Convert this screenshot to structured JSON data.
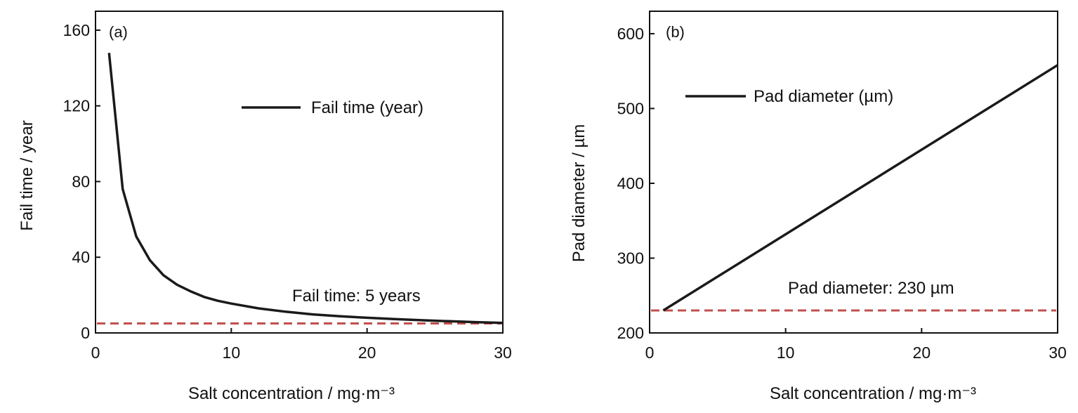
{
  "chart_data": [
    {
      "type": "line",
      "panel_label": "(a)",
      "xlabel": "Salt concentration / mg·m⁻³",
      "ylabel": "Fail time / year",
      "xlim": [
        0,
        30
      ],
      "ylim": [
        0,
        170
      ],
      "xticks": [
        0,
        10,
        20,
        30
      ],
      "yticks": [
        0,
        40,
        80,
        120,
        160
      ],
      "legend": {
        "label": "Fail time (year)",
        "position": "upper-right"
      },
      "series": [
        {
          "name": "Fail time (year)",
          "color": "#1a1a1a",
          "x": [
            1,
            2,
            3,
            4,
            5,
            6,
            7,
            8,
            9,
            10,
            12,
            14,
            16,
            18,
            20,
            22,
            24,
            26,
            28,
            30
          ],
          "y": [
            148,
            76,
            51,
            38.5,
            30.5,
            25.5,
            22,
            19,
            17,
            15.5,
            13,
            11.2,
            9.8,
            8.8,
            8,
            7.3,
            6.7,
            6.2,
            5.7,
            5.3
          ]
        }
      ],
      "reference_line": {
        "y": 5,
        "color": "#c0504d",
        "style": "dashed",
        "label": "Fail time: 5 years"
      }
    },
    {
      "type": "line",
      "panel_label": "(b)",
      "xlabel": "Salt concentration / mg·m⁻³",
      "ylabel": "Pad diameter / µm",
      "xlim": [
        0,
        30
      ],
      "ylim": [
        200,
        630
      ],
      "xticks": [
        0,
        10,
        20,
        30
      ],
      "yticks": [
        200,
        300,
        400,
        500,
        600
      ],
      "legend": {
        "label": "Pad diameter (µm)",
        "position": "upper-left"
      },
      "series": [
        {
          "name": "Pad diameter (µm)",
          "color": "#1a1a1a",
          "x": [
            1,
            30
          ],
          "y": [
            230,
            558
          ]
        }
      ],
      "reference_line": {
        "y": 230,
        "color": "#c0504d",
        "style": "dashed",
        "label": "Pad diameter: 230 µm"
      }
    }
  ]
}
